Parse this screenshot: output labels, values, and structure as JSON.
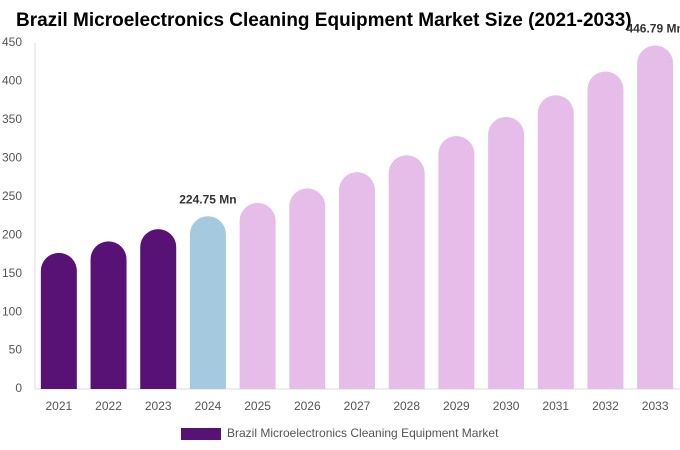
{
  "chart_data": {
    "type": "bar",
    "title": "Brazil Microelectronics Cleaning Equipment Market Size (2021-2033)",
    "categories": [
      "2021",
      "2022",
      "2023",
      "2024",
      "2025",
      "2026",
      "2027",
      "2028",
      "2029",
      "2030",
      "2031",
      "2032",
      "2033"
    ],
    "series": [
      {
        "name": "Brazil Microelectronics Cleaning Equipment Market",
        "color": "#581275",
        "colors": [
          "#581275",
          "#581275",
          "#581275",
          "#a5cadf",
          "#e6bde9",
          "#e6bde9",
          "#e6bde9",
          "#e6bde9",
          "#e6bde9",
          "#e6bde9",
          "#e6bde9",
          "#e6bde9",
          "#e6bde9"
        ],
        "values": [
          177,
          192,
          208,
          224.75,
          242,
          261,
          282,
          304,
          329,
          354,
          382,
          413,
          446.79
        ],
        "value_labels": [
          null,
          null,
          null,
          "224.75 Mn",
          null,
          null,
          null,
          null,
          null,
          null,
          null,
          null,
          "446.79 Mn"
        ]
      }
    ],
    "ylim": [
      0,
      450
    ],
    "yticks": [
      0,
      50,
      100,
      150,
      200,
      250,
      300,
      350,
      400,
      450
    ],
    "grid": false
  }
}
